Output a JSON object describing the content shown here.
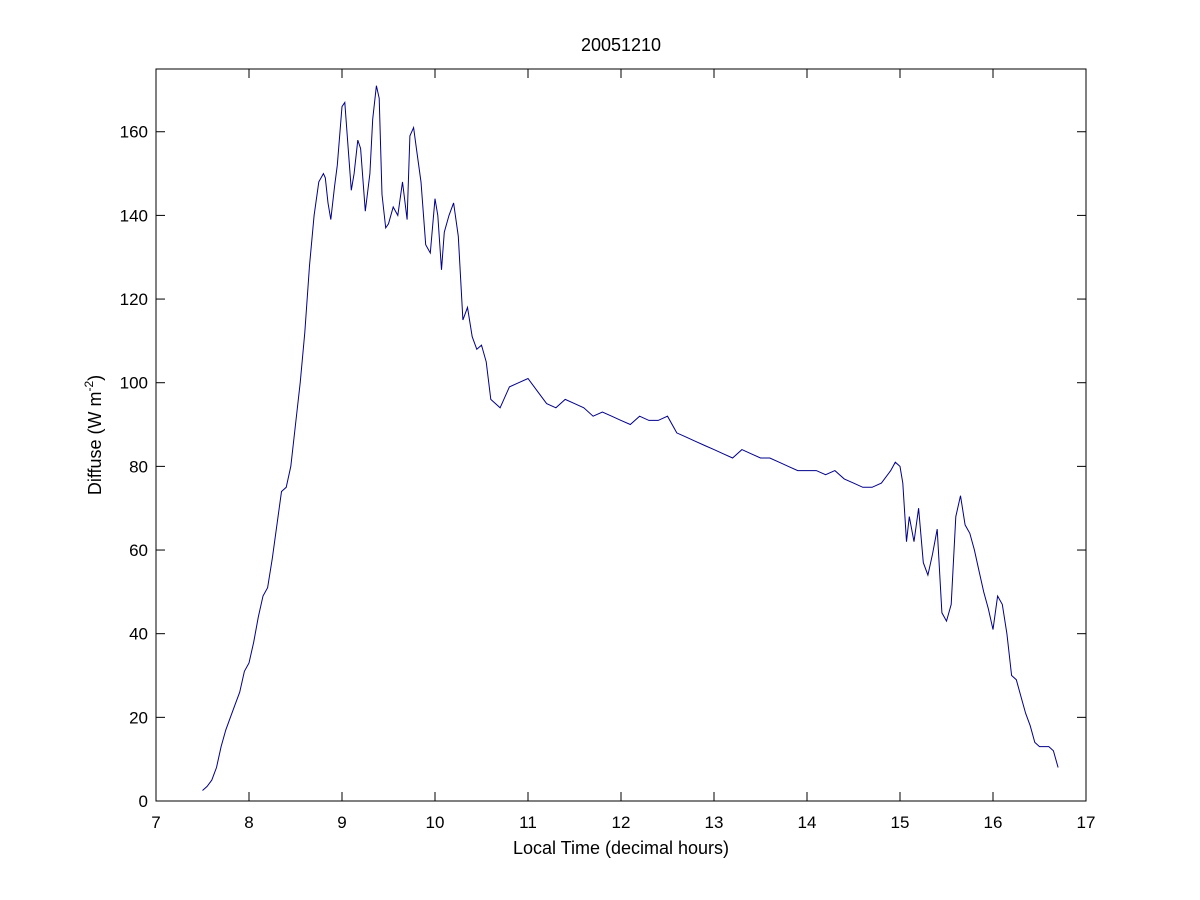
{
  "chart_data": {
    "type": "line",
    "title": "20051210",
    "xlabel": "Local Time (decimal hours)",
    "ylabel": "Diffuse (W m",
    "ylabel_superscript": "-2",
    "ylabel_suffix": ")",
    "xlim": [
      7,
      17
    ],
    "ylim": [
      0,
      175
    ],
    "xticks": [
      7,
      8,
      9,
      10,
      11,
      12,
      13,
      14,
      15,
      16,
      17
    ],
    "yticks": [
      0,
      20,
      40,
      60,
      80,
      100,
      120,
      140,
      160
    ],
    "grid": false,
    "line_color": "#00008b",
    "series": [
      {
        "x": [
          7.5,
          7.55,
          7.6,
          7.65,
          7.7,
          7.75,
          7.8,
          7.85,
          7.9,
          7.95,
          8.0,
          8.05,
          8.1,
          8.15,
          8.2,
          8.25,
          8.3,
          8.35,
          8.4,
          8.45,
          8.5,
          8.55,
          8.6,
          8.65,
          8.7,
          8.75,
          8.8,
          8.82,
          8.85,
          8.88,
          8.92,
          8.95,
          9.0,
          9.03,
          9.07,
          9.1,
          9.13,
          9.17,
          9.2,
          9.25,
          9.3,
          9.33,
          9.37,
          9.4,
          9.43,
          9.47,
          9.5,
          9.55,
          9.6,
          9.65,
          9.7,
          9.73,
          9.77,
          9.8,
          9.85,
          9.9,
          9.95,
          10.0,
          10.03,
          10.07,
          10.1,
          10.15,
          10.2,
          10.25,
          10.3,
          10.35,
          10.4,
          10.45,
          10.5,
          10.55,
          10.6,
          10.7,
          10.8,
          10.9,
          11.0,
          11.1,
          11.2,
          11.3,
          11.4,
          11.5,
          11.6,
          11.7,
          11.8,
          11.9,
          12.0,
          12.1,
          12.2,
          12.3,
          12.4,
          12.5,
          12.6,
          12.7,
          12.8,
          12.9,
          13.0,
          13.1,
          13.2,
          13.3,
          13.4,
          13.5,
          13.6,
          13.7,
          13.8,
          13.9,
          14.0,
          14.1,
          14.2,
          14.3,
          14.4,
          14.5,
          14.6,
          14.7,
          14.8,
          14.9,
          14.95,
          15.0,
          15.03,
          15.07,
          15.1,
          15.15,
          15.2,
          15.25,
          15.3,
          15.35,
          15.4,
          15.45,
          15.5,
          15.55,
          15.6,
          15.65,
          15.7,
          15.75,
          15.8,
          15.85,
          15.9,
          15.95,
          16.0,
          16.05,
          16.1,
          16.15,
          16.2,
          16.25,
          16.3,
          16.35,
          16.4,
          16.45,
          16.5,
          16.55,
          16.6,
          16.65,
          16.7
        ],
        "y": [
          2.5,
          3.5,
          5,
          8,
          13,
          17,
          20,
          23,
          26,
          31,
          33,
          38,
          44,
          49,
          51,
          58,
          66,
          74,
          75,
          80,
          90,
          100,
          112,
          128,
          140,
          148,
          150,
          149,
          143,
          139,
          147,
          152,
          166,
          167,
          155,
          146,
          150,
          158,
          156,
          141,
          150,
          163,
          171,
          168,
          145,
          137,
          138,
          142,
          140,
          148,
          139,
          159,
          161,
          156,
          148,
          133,
          131,
          144,
          140,
          127,
          136,
          140,
          143,
          135,
          115,
          118,
          111,
          108,
          109,
          105,
          96,
          94,
          99,
          100,
          101,
          98,
          95,
          94,
          96,
          95,
          94,
          92,
          93,
          92,
          91,
          90,
          92,
          91,
          91,
          92,
          88,
          87,
          86,
          85,
          84,
          83,
          82,
          84,
          83,
          82,
          82,
          81,
          80,
          79,
          79,
          79,
          78,
          79,
          77,
          76,
          75,
          75,
          76,
          79,
          81,
          80,
          76,
          62,
          68,
          62,
          70,
          57,
          54,
          59,
          65,
          45,
          43,
          47,
          68,
          73,
          66,
          64,
          60,
          55,
          50,
          46,
          41,
          49,
          47,
          40,
          30,
          29,
          25,
          21,
          18,
          14,
          13,
          13,
          13,
          12,
          8
        ]
      }
    ]
  }
}
